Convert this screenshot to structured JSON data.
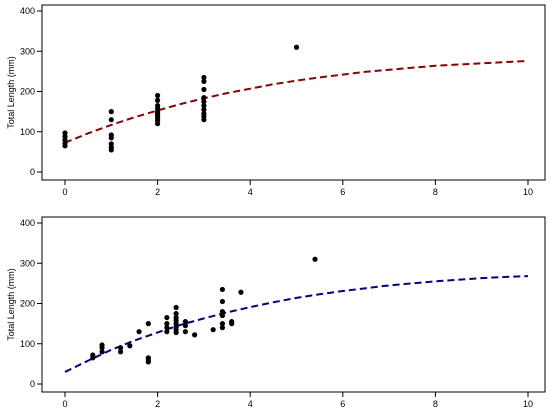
{
  "chart_data": [
    {
      "type": "scatter",
      "title": "",
      "xlabel": "",
      "ylabel": "Total Length (mm)",
      "xlim": [
        0,
        10
      ],
      "ylim": [
        0,
        400
      ],
      "xticks": [
        0,
        2,
        4,
        6,
        8,
        10
      ],
      "yticks": [
        0,
        100,
        200,
        300,
        400
      ],
      "grid": false,
      "curve_color": "#8b0000",
      "points": [
        [
          0,
          65
        ],
        [
          0,
          72
        ],
        [
          0,
          80
        ],
        [
          0,
          88
        ],
        [
          0,
          97
        ],
        [
          1,
          55
        ],
        [
          1,
          62
        ],
        [
          1,
          70
        ],
        [
          1,
          85
        ],
        [
          1,
          92
        ],
        [
          1,
          130
        ],
        [
          1,
          150
        ],
        [
          2,
          120
        ],
        [
          2,
          128
        ],
        [
          2,
          135
        ],
        [
          2,
          140
        ],
        [
          2,
          145
        ],
        [
          2,
          150
        ],
        [
          2,
          158
        ],
        [
          2,
          165
        ],
        [
          2,
          178
        ],
        [
          2,
          190
        ],
        [
          3,
          130
        ],
        [
          3,
          138
        ],
        [
          3,
          145
        ],
        [
          3,
          155
        ],
        [
          3,
          165
        ],
        [
          3,
          175
        ],
        [
          3,
          185
        ],
        [
          3,
          205
        ],
        [
          3,
          225
        ],
        [
          3,
          235
        ],
        [
          5,
          310
        ]
      ],
      "curve": {
        "x": [
          0,
          0.5,
          1,
          1.5,
          2,
          2.5,
          3,
          3.5,
          4,
          4.5,
          5,
          5.5,
          6,
          6.5,
          7,
          7.5,
          8,
          8.5,
          9,
          9.5,
          10
        ],
        "y": [
          73,
          96,
          117,
          136,
          153,
          169,
          183,
          196,
          207,
          218,
          227,
          235,
          242,
          249,
          254,
          259,
          264,
          267,
          270,
          273,
          276
        ]
      }
    },
    {
      "type": "scatter",
      "title": "",
      "xlabel": "",
      "ylabel": "Total Length (mm)",
      "xlim": [
        0,
        10
      ],
      "ylim": [
        0,
        400
      ],
      "xticks": [
        0,
        2,
        4,
        6,
        8,
        10
      ],
      "yticks": [
        0,
        100,
        200,
        300,
        400
      ],
      "grid": false,
      "curve_color": "#00008b",
      "points": [
        [
          0.6,
          65
        ],
        [
          0.6,
          72
        ],
        [
          0.8,
          80
        ],
        [
          0.8,
          90
        ],
        [
          0.8,
          97
        ],
        [
          1.2,
          80
        ],
        [
          1.2,
          90
        ],
        [
          1.4,
          95
        ],
        [
          1.6,
          130
        ],
        [
          1.8,
          55
        ],
        [
          1.8,
          60
        ],
        [
          1.8,
          65
        ],
        [
          1.8,
          150
        ],
        [
          2.2,
          130
        ],
        [
          2.2,
          140
        ],
        [
          2.2,
          150
        ],
        [
          2.2,
          165
        ],
        [
          2.4,
          128
        ],
        [
          2.4,
          135
        ],
        [
          2.4,
          142
        ],
        [
          2.4,
          150
        ],
        [
          2.4,
          158
        ],
        [
          2.4,
          165
        ],
        [
          2.4,
          175
        ],
        [
          2.4,
          190
        ],
        [
          2.6,
          130
        ],
        [
          2.6,
          145
        ],
        [
          2.6,
          155
        ],
        [
          2.8,
          122
        ],
        [
          3.2,
          135
        ],
        [
          3.4,
          140
        ],
        [
          3.4,
          150
        ],
        [
          3.4,
          170
        ],
        [
          3.4,
          180
        ],
        [
          3.4,
          205
        ],
        [
          3.4,
          235
        ],
        [
          3.6,
          150
        ],
        [
          3.6,
          155
        ],
        [
          3.8,
          228
        ],
        [
          5.4,
          310
        ]
      ],
      "curve": {
        "x": [
          0,
          0.5,
          1,
          1.5,
          2,
          2.5,
          3,
          3.5,
          4,
          4.5,
          5,
          5.5,
          6,
          6.5,
          7,
          7.5,
          8,
          8.5,
          9,
          9.5,
          10
        ],
        "y": [
          30,
          58,
          85,
          108,
          128,
          147,
          163,
          178,
          191,
          203,
          214,
          223,
          231,
          238,
          245,
          250,
          255,
          259,
          263,
          266,
          268
        ]
      }
    }
  ]
}
